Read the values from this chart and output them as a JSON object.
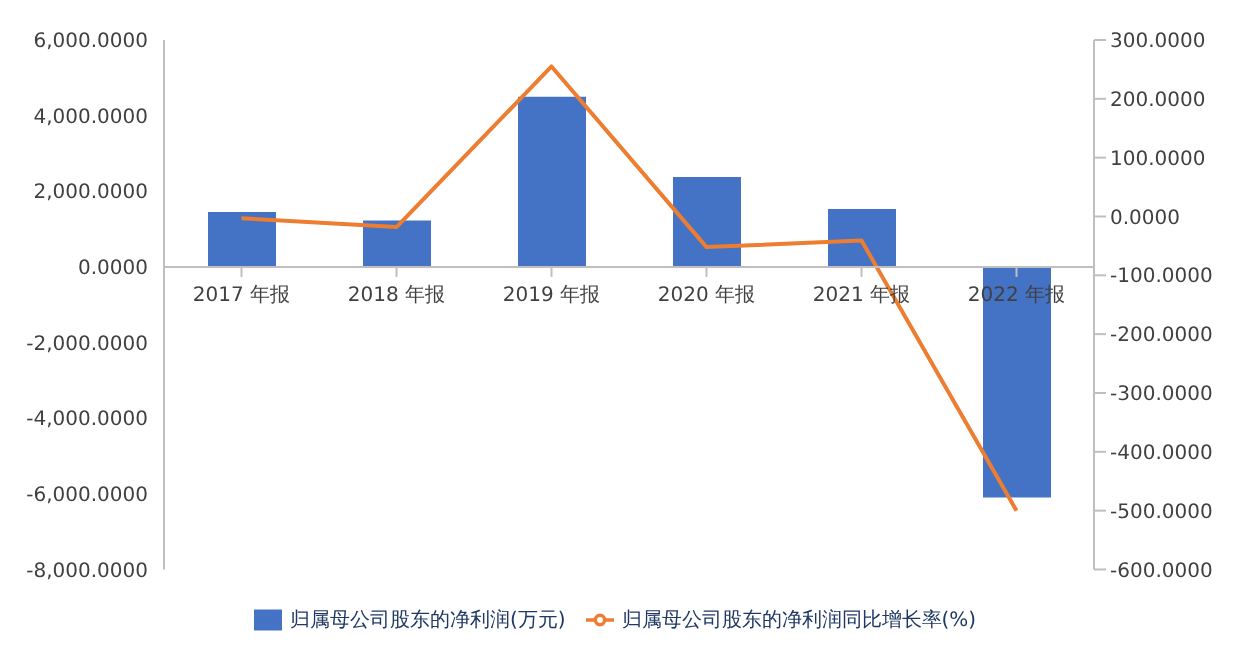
{
  "chart_data": {
    "type": "bar",
    "categories": [
      "2017 年报",
      "2018 年报",
      "2019 年报",
      "2020 年报",
      "2021 年报",
      "2022 年报"
    ],
    "series": [
      {
        "name": "归属母公司股东的净利润(万元)",
        "color": "#4472c4",
        "values": [
          1450,
          1230,
          4500,
          2380,
          1530,
          -6100
        ]
      },
      {
        "name": "归属母公司股东的净利润同比增长率(%)",
        "type": "line",
        "axis": "y2",
        "color": "#ed7d31",
        "values": [
          -3,
          -18,
          255,
          -52,
          -41,
          -500
        ]
      }
    ],
    "ylim": [
      -8000,
      6000
    ],
    "yticks": [
      {
        "value": -8000,
        "label": "-8,000.0000"
      },
      {
        "value": -6000,
        "label": "-6,000.0000"
      },
      {
        "value": -4000,
        "label": "-4,000.0000"
      },
      {
        "value": -2000,
        "label": "-2,000.0000"
      },
      {
        "value": 0,
        "label": "0.0000"
      },
      {
        "value": 2000,
        "label": "2,000.0000"
      },
      {
        "value": 4000,
        "label": "4,000.0000"
      },
      {
        "value": 6000,
        "label": "6,000.0000"
      }
    ],
    "y2lim": [
      -600,
      300
    ],
    "y2ticks": [
      {
        "value": -600,
        "label": "-600.0000"
      },
      {
        "value": -500,
        "label": "-500.0000"
      },
      {
        "value": -400,
        "label": "-400.0000"
      },
      {
        "value": -300,
        "label": "-300.0000"
      },
      {
        "value": -200,
        "label": "-200.0000"
      },
      {
        "value": -100,
        "label": "-100.0000"
      },
      {
        "value": 0,
        "label": "0.0000"
      },
      {
        "value": 100,
        "label": "100.0000"
      },
      {
        "value": 200,
        "label": "200.0000"
      },
      {
        "value": 300,
        "label": "300.0000"
      }
    ],
    "grid": false,
    "legend": "bottom",
    "marker": "none",
    "line_style": "solid"
  }
}
